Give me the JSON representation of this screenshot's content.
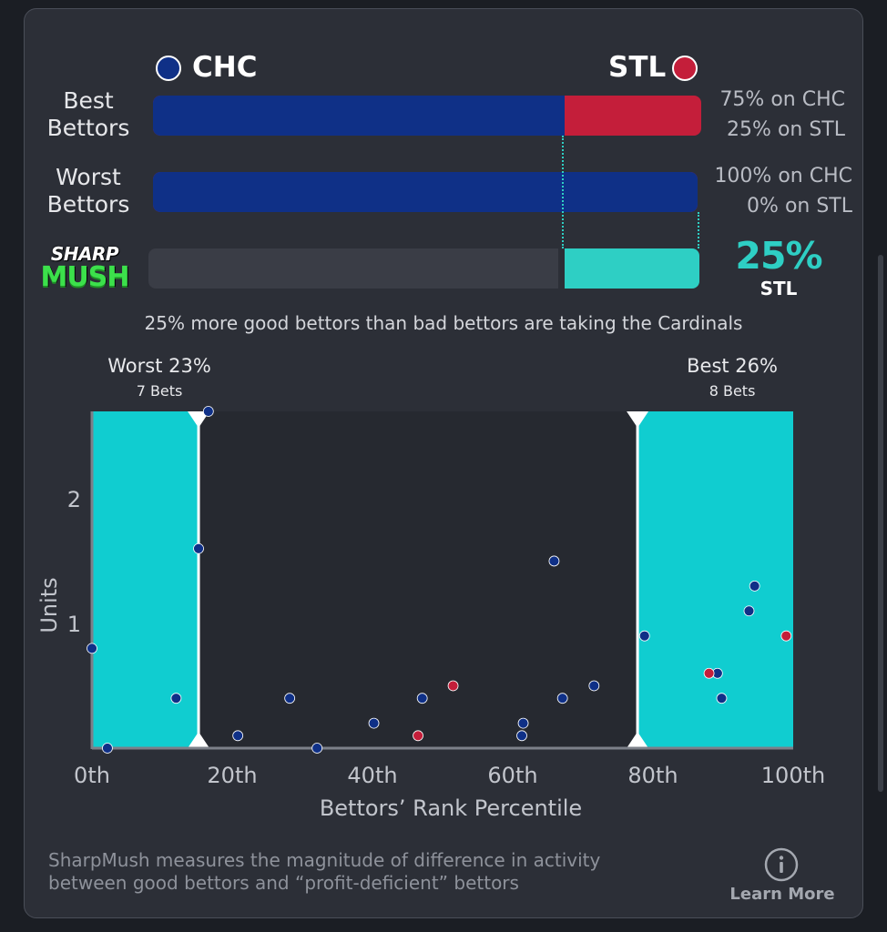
{
  "teams": {
    "left": {
      "abbr": "CHC",
      "color": "#0f3087"
    },
    "right": {
      "abbr": "STL",
      "color": "#c41e3a"
    }
  },
  "rows": {
    "best": {
      "label_line1": "Best",
      "label_line2": "Bettors",
      "left_share": 0.75,
      "pct_line1": "75% on CHC",
      "pct_line2": "25% on STL"
    },
    "worst": {
      "label_line1": "Worst",
      "label_line2": "Bettors",
      "left_share": 1.0,
      "pct_line1": "100% on CHC",
      "pct_line2": "0% on STL"
    },
    "sharpmush": {
      "logo_line1": "SHARP",
      "logo_line2": "MUSH",
      "fill_share": 0.25,
      "value": "25%",
      "team": "STL",
      "color": "#2ecfc4"
    }
  },
  "summary": "25% more good bettors than bad bettors are taking the Cardinals",
  "chart_data": {
    "type": "scatter",
    "xlabel": "Bettors’ Rank Percentile",
    "ylabel": "Units",
    "xlim": [
      0,
      100
    ],
    "ylim": [
      0,
      2.7
    ],
    "x_ticks": [
      0,
      20,
      40,
      60,
      80,
      100
    ],
    "x_tick_labels": [
      "0th",
      "20th",
      "40th",
      "60th",
      "80th",
      "100th"
    ],
    "y_ticks": [
      1,
      2
    ],
    "y_tick_labels": [
      "1",
      "2"
    ],
    "grid": false,
    "shaded_regions": [
      {
        "from": 0,
        "to": 15.2,
        "label": "Worst 23%",
        "sublabel": "7 Bets"
      },
      {
        "from": 77.8,
        "to": 100,
        "label": "Best 26%",
        "sublabel": "8 Bets"
      }
    ],
    "series": [
      {
        "color": "#0f3087",
        "points": [
          [
            0,
            0.8
          ],
          [
            2.2,
            0
          ],
          [
            12,
            0.4
          ],
          [
            15.2,
            1.6
          ],
          [
            16.6,
            2.7
          ],
          [
            20.8,
            0.1
          ],
          [
            28.2,
            0.4
          ],
          [
            32.1,
            0
          ],
          [
            40.2,
            0.2
          ],
          [
            47.1,
            0.4
          ],
          [
            61.3,
            0.1
          ],
          [
            61.5,
            0.2
          ],
          [
            65.9,
            1.5
          ],
          [
            67.1,
            0.4
          ],
          [
            71.6,
            0.5
          ],
          [
            78.8,
            0.9
          ],
          [
            89.2,
            0.6
          ],
          [
            89.8,
            0.4
          ],
          [
            93.7,
            1.1
          ],
          [
            94.5,
            1.3
          ]
        ]
      },
      {
        "color": "#c41e3a",
        "points": [
          [
            46.5,
            0.1
          ],
          [
            51.5,
            0.5
          ],
          [
            88,
            0.6
          ],
          [
            99,
            0.9
          ]
        ]
      }
    ]
  },
  "footer": {
    "line1": "SharpMush measures the magnitude of difference in activity",
    "line2": "between good bettors and “profit-deficient” bettors",
    "learn_more": "Learn More",
    "info_icon": "info-circle-icon"
  }
}
